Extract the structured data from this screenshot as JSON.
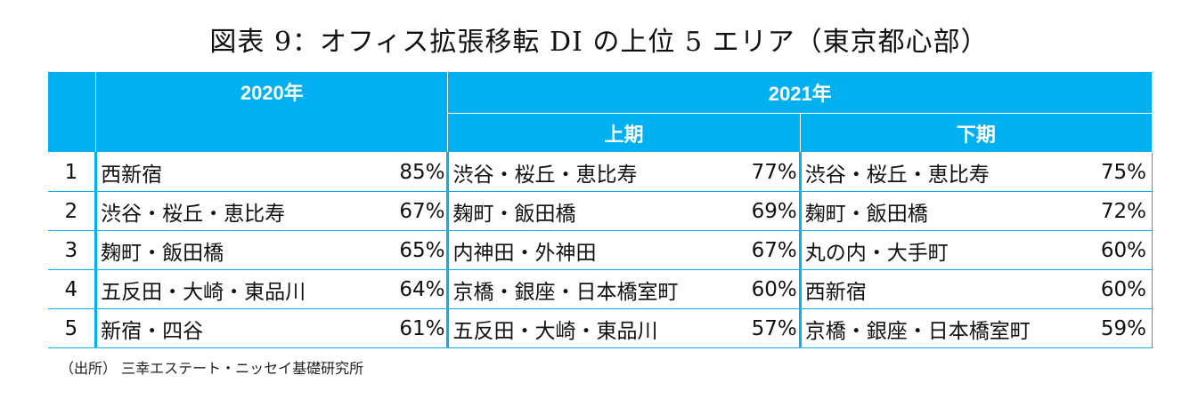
{
  "title": "図表 9：オフィス拡張移転 DI の上位 5 エリア（東京都心部）",
  "header": {
    "year_2020": "2020年",
    "year_2021": "2021年",
    "first_half": "上期",
    "second_half": "下期"
  },
  "rows": [
    {
      "rank": "1",
      "y2020_area": "西新宿",
      "y2020_value": "85%",
      "h1_area": "渋谷・桜丘・恵比寿",
      "h1_value": "77%",
      "h2_area": "渋谷・桜丘・恵比寿",
      "h2_value": "75%"
    },
    {
      "rank": "2",
      "y2020_area": "渋谷・桜丘・恵比寿",
      "y2020_value": "67%",
      "h1_area": "麹町・飯田橋",
      "h1_value": "69%",
      "h2_area": "麹町・飯田橋",
      "h2_value": "72%"
    },
    {
      "rank": "3",
      "y2020_area": "麹町・飯田橋",
      "y2020_value": "65%",
      "h1_area": "内神田・外神田",
      "h1_value": "67%",
      "h2_area": "丸の内・大手町",
      "h2_value": "60%"
    },
    {
      "rank": "4",
      "y2020_area": "五反田・大崎・東品川",
      "y2020_value": "64%",
      "h1_area": "京橋・銀座・日本橋室町",
      "h1_value": "60%",
      "h2_area": "西新宿",
      "h2_value": "60%"
    },
    {
      "rank": "5",
      "y2020_area": "新宿・四谷",
      "y2020_value": "61%",
      "h1_area": "五反田・大崎・東品川",
      "h1_value": "57%",
      "h2_area": "京橋・銀座・日本橋室町",
      "h2_value": "59%"
    }
  ],
  "source": "（出所） 三幸エステート・ニッセイ基礎研究所",
  "colors": {
    "header_background": "#00b0f0",
    "header_text": "#ffffff"
  }
}
